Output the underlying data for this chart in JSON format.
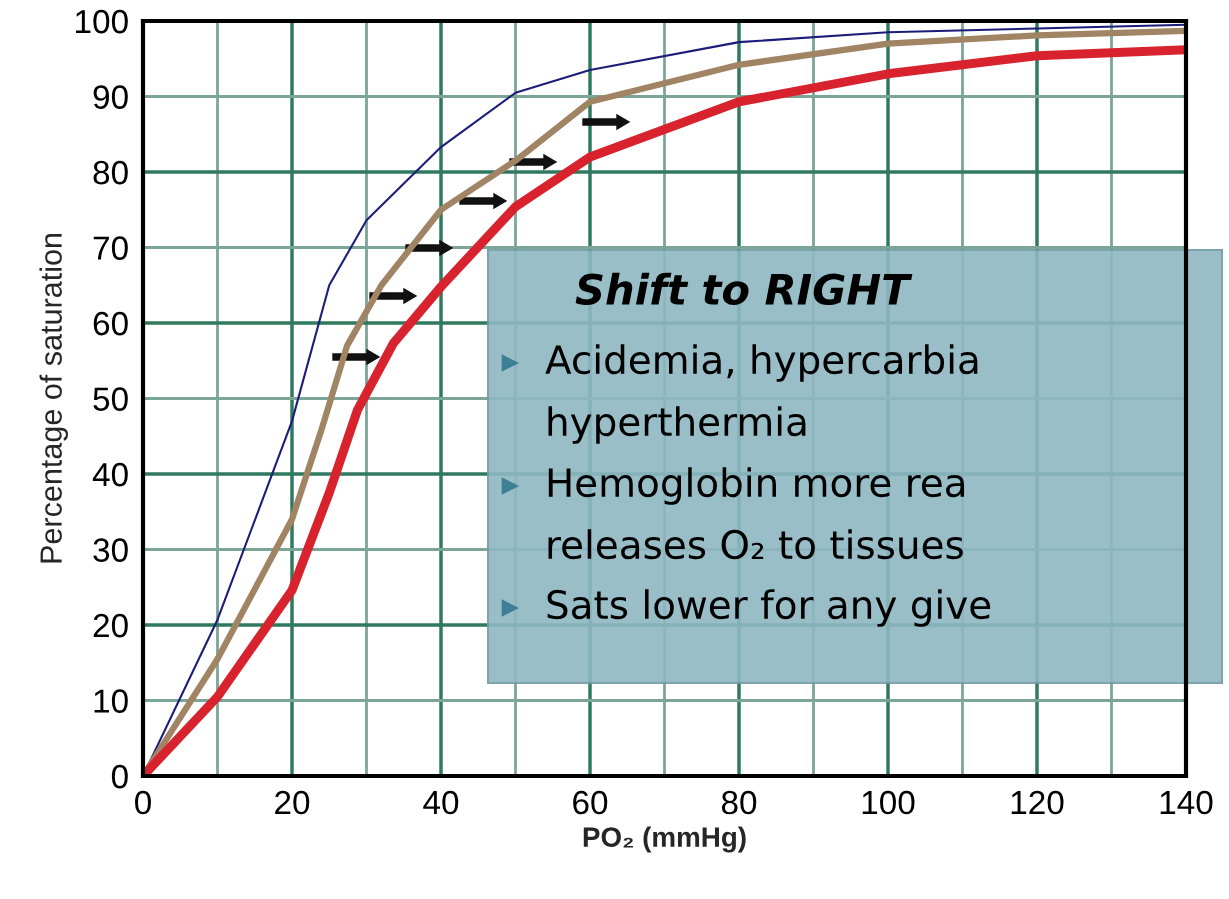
{
  "chart_data": {
    "type": "line",
    "xlabel": "PO₂ (mmHg)",
    "ylabel": "Percentage of saturation",
    "xlim": [
      0,
      140
    ],
    "ylim": [
      0,
      100
    ],
    "xticks": [
      0,
      {
        "value": 10,
        "label": null
      },
      20,
      {
        "value": 30,
        "label": null
      },
      40,
      {
        "value": 50,
        "label": null
      },
      60,
      {
        "value": 70,
        "label": null
      },
      80,
      {
        "value": 90,
        "label": null
      },
      100,
      {
        "value": 110,
        "label": null
      },
      120,
      {
        "value": 130,
        "label": null
      },
      140
    ],
    "yticks": [
      0,
      10,
      20,
      30,
      40,
      50,
      60,
      70,
      80,
      90,
      100
    ],
    "grid": true,
    "marker": "none",
    "line_style": "solid",
    "series": [
      {
        "color": "#1c1c7a",
        "x": [
          0,
          10,
          20,
          25,
          30,
          40,
          50,
          60,
          80,
          100,
          120,
          140
        ],
        "values": [
          0,
          20.7,
          47,
          65,
          73.6,
          83.3,
          90.5,
          93.5,
          97.2,
          98.5,
          99,
          99.5
        ]
      },
      {
        "color": "#a08464",
        "x": [
          0,
          10,
          20,
          24,
          27.4,
          32,
          40,
          50,
          60,
          80,
          100,
          120,
          140
        ],
        "values": [
          0,
          15.5,
          34,
          46,
          57,
          65,
          75,
          81.5,
          89.3,
          94.2,
          97,
          98.1,
          98.7
        ]
      },
      {
        "color": "#d8232f",
        "x": [
          0,
          10,
          20,
          25,
          28.8,
          33.6,
          40,
          50,
          60,
          80,
          100,
          120,
          140
        ],
        "values": [
          0,
          10.5,
          24.6,
          37.5,
          48.5,
          57.3,
          64.8,
          75.4,
          82,
          89.3,
          93,
          95.4,
          96.2
        ]
      }
    ],
    "annotations": [
      "Shift to RIGHT",
      "Acidemia, hypercarbia",
      "hyperthermia",
      "Hemoglobin more rea",
      "releases O₂ to tissues",
      "Sats lower for any give"
    ]
  }
}
